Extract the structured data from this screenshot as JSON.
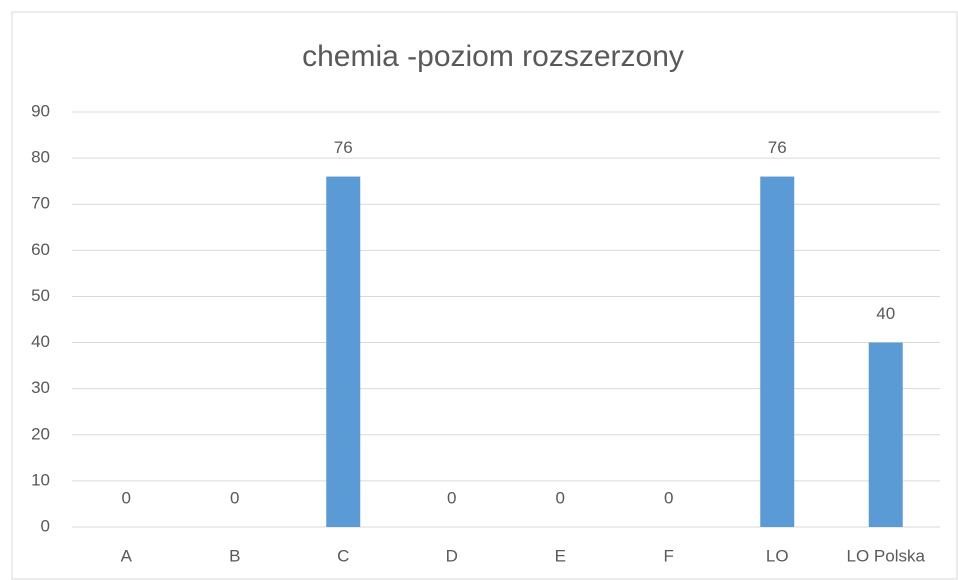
{
  "chart_data": {
    "type": "bar",
    "title": "chemia -poziom rozszerzony",
    "categories": [
      "A",
      "B",
      "C",
      "D",
      "E",
      "F",
      "LO",
      "LO Polska"
    ],
    "values": [
      0,
      0,
      76,
      0,
      0,
      0,
      76,
      40
    ],
    "color": "#5b9bd5",
    "ylim": [
      0,
      90
    ],
    "yticks": [
      0,
      10,
      20,
      30,
      40,
      50,
      60,
      70,
      80,
      90
    ],
    "grid": true
  }
}
